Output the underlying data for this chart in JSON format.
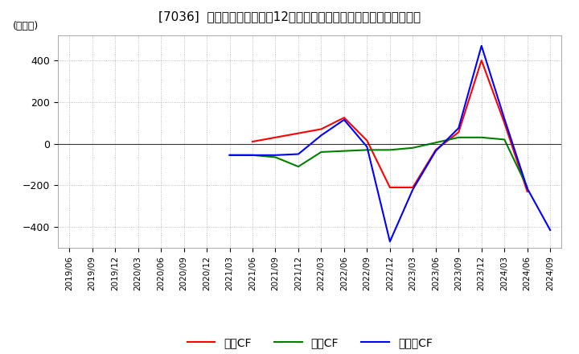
{
  "title": "[7036]  キャッシュフローの12か月移動合計の対前年同期増減額の推移",
  "ylabel": "(百万円)",
  "ylim": [
    -500,
    520
  ],
  "yticks": [
    -400,
    -200,
    0,
    200,
    400
  ],
  "background_color": "#ffffff",
  "grid_color": "#aaaaaa",
  "dates": [
    "2019/06",
    "2019/09",
    "2019/12",
    "2020/03",
    "2020/06",
    "2020/09",
    "2020/12",
    "2021/03",
    "2021/06",
    "2021/09",
    "2021/12",
    "2022/03",
    "2022/06",
    "2022/09",
    "2022/12",
    "2023/03",
    "2023/06",
    "2023/09",
    "2023/12",
    "2024/03",
    "2024/06",
    "2024/09"
  ],
  "operating_cf": [
    null,
    null,
    null,
    null,
    null,
    null,
    null,
    null,
    10,
    30,
    50,
    70,
    125,
    15,
    -210,
    -210,
    -30,
    55,
    400,
    100,
    -230,
    null
  ],
  "investing_cf": [
    null,
    null,
    null,
    null,
    null,
    null,
    null,
    -55,
    -55,
    -65,
    -110,
    -40,
    -35,
    -30,
    -30,
    -20,
    5,
    30,
    30,
    20,
    -210,
    null
  ],
  "free_cf": [
    null,
    null,
    null,
    null,
    null,
    null,
    null,
    -55,
    -55,
    -55,
    -50,
    40,
    115,
    -15,
    -470,
    -220,
    -35,
    75,
    470,
    120,
    -215,
    -415
  ],
  "operating_color": "#ff0000",
  "investing_color": "#008000",
  "free_color": "#0000ff",
  "line_width": 1.5,
  "legend_labels": [
    "営業CF",
    "投資CF",
    "フリーCF"
  ]
}
